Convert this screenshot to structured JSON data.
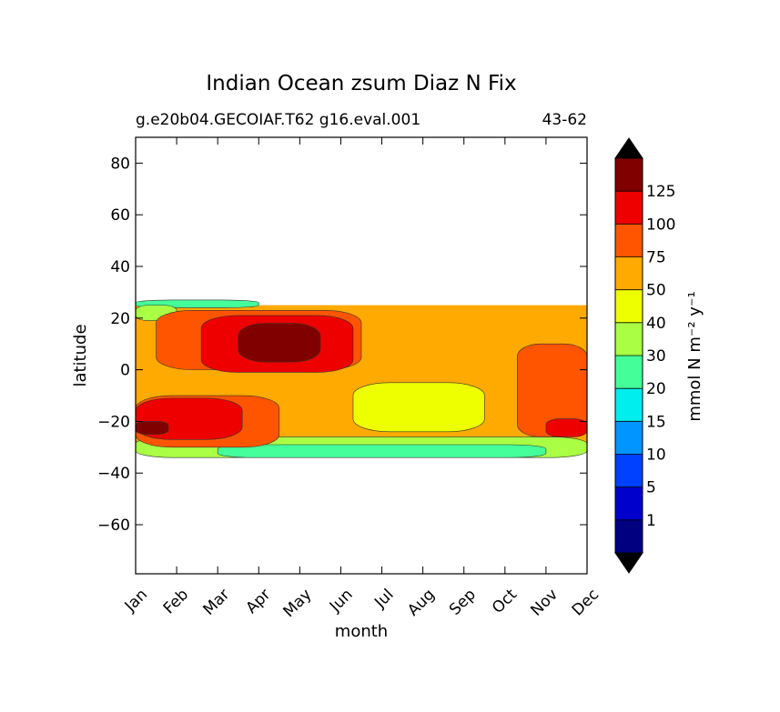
{
  "chart_data": {
    "type": "heatmap",
    "title": "Indian Ocean zsum Diaz N Fix",
    "subtitle_left": "g.e20b04.GECOIAF.T62 g16.eval.001",
    "subtitle_right": "43-62",
    "xlabel": "month",
    "ylabel": "latitude",
    "x_tick_labels": [
      "Jan",
      "Feb",
      "Mar",
      "Apr",
      "May",
      "Jun",
      "Jul",
      "Aug",
      "Sep",
      "Oct",
      "Nov",
      "Dec"
    ],
    "y_ticks": [
      80,
      60,
      40,
      20,
      0,
      -20,
      -40,
      -60
    ],
    "y_tick_labels": [
      "80",
      "60",
      "40",
      "20",
      "0",
      "−20",
      "−40",
      "−60"
    ],
    "ylim": [
      -79,
      90
    ],
    "data_lat_range": [
      -34,
      27
    ],
    "colorbar": {
      "label": "mmol N m⁻² y⁻¹",
      "levels": [
        1,
        5,
        10,
        15,
        20,
        30,
        40,
        50,
        75,
        100,
        125
      ],
      "level_labels": [
        "1",
        "5",
        "10",
        "15",
        "20",
        "30",
        "40",
        "50",
        "75",
        "100",
        "125"
      ],
      "colors": [
        "#000080",
        "#0000cd",
        "#0040ff",
        "#0095ff",
        "#00eeee",
        "#44ff99",
        "#aaff44",
        "#eeff00",
        "#ffaa00",
        "#ff5500",
        "#ee0000",
        "#800000"
      ],
      "extend": "both"
    },
    "regions": [
      {
        "level_index": 8,
        "months": [
          0,
          11
        ],
        "lat": [
          -31,
          25
        ]
      },
      {
        "level_index": 6,
        "months": [
          0,
          11
        ],
        "lat": [
          -34,
          -26
        ]
      },
      {
        "level_index": 5,
        "months": [
          2,
          10
        ],
        "lat": [
          -34,
          -29
        ]
      },
      {
        "level_index": 5,
        "months": [
          0,
          3
        ],
        "lat": [
          24,
          27
        ]
      },
      {
        "level_index": 6,
        "months": [
          0,
          1
        ],
        "lat": [
          19,
          25
        ]
      },
      {
        "level_index": 7,
        "months": [
          5.3,
          8.5
        ],
        "lat": [
          -24,
          -5
        ]
      },
      {
        "level_index": 9,
        "months": [
          0,
          3.5
        ],
        "lat": [
          -30,
          -10
        ]
      },
      {
        "level_index": 9,
        "months": [
          0.5,
          5.5
        ],
        "lat": [
          0,
          23
        ]
      },
      {
        "level_index": 9,
        "months": [
          9.3,
          11
        ],
        "lat": [
          -26,
          10
        ]
      },
      {
        "level_index": 10,
        "months": [
          0,
          2.6
        ],
        "lat": [
          -27,
          -11
        ]
      },
      {
        "level_index": 10,
        "months": [
          1.6,
          5.3
        ],
        "lat": [
          -1,
          21
        ]
      },
      {
        "level_index": 10,
        "months": [
          10,
          11
        ],
        "lat": [
          -26,
          -19
        ]
      },
      {
        "level_index": 11,
        "months": [
          2.5,
          4.5
        ],
        "lat": [
          3,
          18
        ]
      },
      {
        "level_index": 11,
        "months": [
          0,
          0.8
        ],
        "lat": [
          -25,
          -20
        ]
      }
    ]
  }
}
